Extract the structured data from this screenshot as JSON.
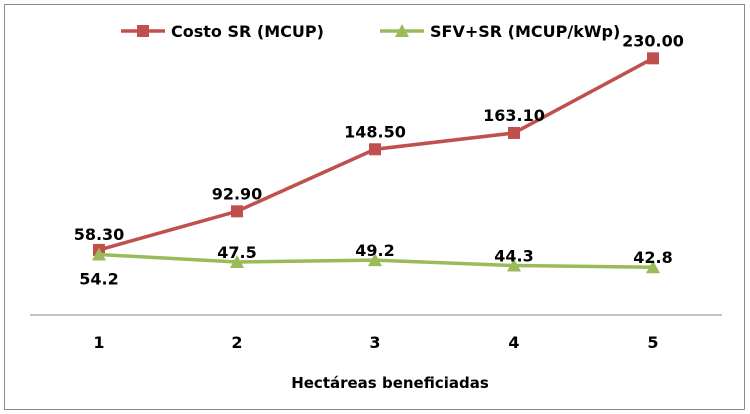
{
  "chart_data": {
    "type": "line",
    "title": "",
    "xlabel": "Hectáreas beneficiadas",
    "ylabel": "",
    "categories": [
      "1",
      "2",
      "3",
      "4",
      "5"
    ],
    "ylim": [
      0,
      250
    ],
    "grid": false,
    "legend_position": "top",
    "series": [
      {
        "name": "Costo SR (MCUP)",
        "color": "#C0504D",
        "marker": "square",
        "values": [
          58.3,
          92.9,
          148.5,
          163.1,
          230.0
        ],
        "labels": [
          "58.30",
          "92.90",
          "148.50",
          "163.10",
          "230.00"
        ]
      },
      {
        "name": "SFV+SR (MCUP/kWp)",
        "color": "#9BBB59",
        "marker": "triangle",
        "values": [
          54.2,
          47.5,
          49.2,
          44.3,
          42.8
        ],
        "labels": [
          "54.2",
          "47.5",
          "49.2",
          "44.3",
          "42.8"
        ]
      }
    ]
  }
}
